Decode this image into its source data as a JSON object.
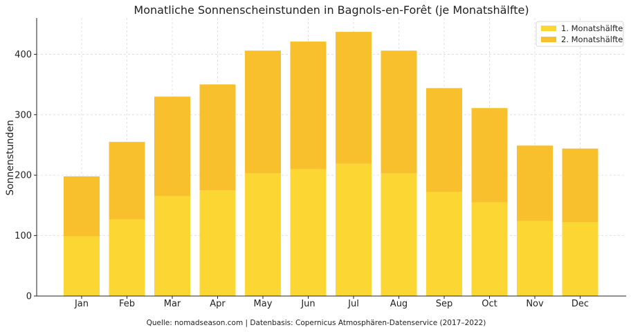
{
  "chart_data": {
    "type": "bar",
    "stacked": true,
    "title": "Monatliche Sonnenscheinstunden in Bagnols-en-Forêt (je Monatshälfte)",
    "xlabel": "",
    "ylabel": "Sonnenstunden",
    "ylim": [
      0,
      460
    ],
    "yticks": [
      0,
      100,
      200,
      300,
      400
    ],
    "grid": true,
    "legend_position": "top-right",
    "categories": [
      "Jan",
      "Feb",
      "Mar",
      "Apr",
      "May",
      "Jun",
      "Jul",
      "Aug",
      "Sep",
      "Oct",
      "Nov",
      "Dec"
    ],
    "series": [
      {
        "name": "1. Monatshälfte",
        "color": "#fcd734",
        "values": [
          99,
          127,
          165,
          175,
          203,
          210,
          219,
          203,
          172,
          155,
          124,
          122
        ]
      },
      {
        "name": "2. Monatshälfte",
        "color": "#f9c02e",
        "values": [
          99,
          128,
          165,
          175,
          203,
          211,
          218,
          203,
          172,
          156,
          125,
          122
        ]
      }
    ],
    "source_note": "Quelle: nomadseason.com | Datenbasis: Copernicus Atmosphären-Datenservice (2017–2022)"
  }
}
